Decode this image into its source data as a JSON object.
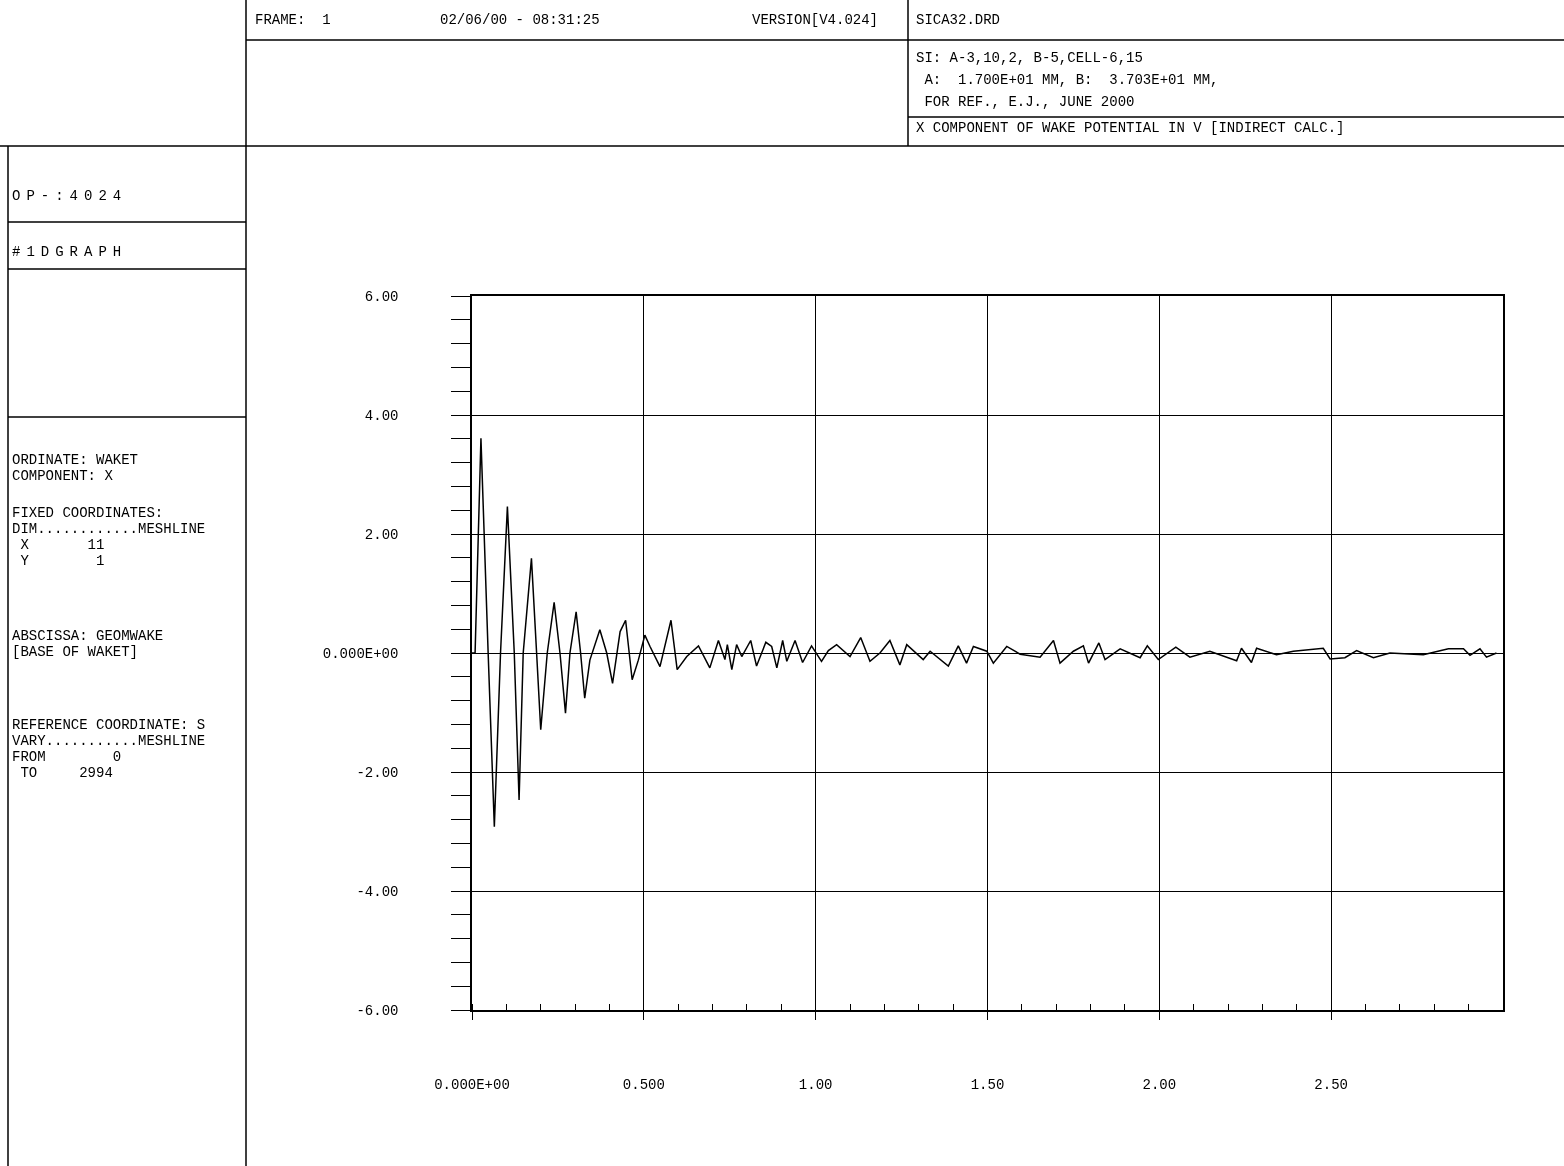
{
  "chart_data": {
    "type": "line",
    "title": "X COMPONENT OF WAKE POTENTIAL IN V [INDIRECT CALC.]",
    "annotations": [
      "FRAME:  1",
      "02/06/00 - 08:31:25",
      "VERSION[V4.024]",
      "SICA32.DRD",
      "SI: A-3,10,2, B-5,CELL-6,15",
      " A:  1.700E+01 MM, B:  3.703E+01 MM,",
      " FOR REF., E.J., JUNE 2000",
      "OP-:4024",
      "#1DGRAPH",
      "ORDINATE: WAKET\nCOMPONENT: X",
      "FIXED COORDINATES:\nDIM............MESHLINE\n X       11\n Y        1",
      "ABSCISSA: GEOMWAKE\n[BASE OF WAKET]",
      "REFERENCE COORDINATE: S\nVARY...........MESHLINE\nFROM        0\n TO     2994"
    ],
    "series": [
      {
        "color": "#000000",
        "x": [
          0.0,
          0.009,
          0.026,
          0.047,
          0.065,
          0.083,
          0.103,
          0.123,
          0.137,
          0.149,
          0.173,
          0.188,
          0.2,
          0.219,
          0.239,
          0.256,
          0.272,
          0.285,
          0.303,
          0.316,
          0.328,
          0.343,
          0.372,
          0.392,
          0.409,
          0.431,
          0.447,
          0.466,
          0.484,
          0.503,
          0.518,
          0.547,
          0.579,
          0.597,
          0.625,
          0.659,
          0.692,
          0.717,
          0.736,
          0.743,
          0.756,
          0.77,
          0.785,
          0.811,
          0.828,
          0.855,
          0.872,
          0.887,
          0.904,
          0.916,
          0.94,
          0.962,
          0.988,
          1.017,
          1.037,
          1.061,
          1.1,
          1.131,
          1.158,
          1.187,
          1.216,
          1.245,
          1.265,
          1.313,
          1.333,
          1.386,
          1.415,
          1.439,
          1.459,
          1.498,
          1.517,
          1.556,
          1.595,
          1.653,
          1.692,
          1.711,
          1.75,
          1.779,
          1.794,
          1.824,
          1.842,
          1.886,
          1.944,
          1.965,
          1.997,
          2.048,
          2.089,
          2.147,
          2.225,
          2.239,
          2.268,
          2.283,
          2.341,
          2.39,
          2.477,
          2.497,
          2.54,
          2.574,
          2.623,
          2.671,
          2.768,
          2.841,
          2.885,
          2.904,
          2.933,
          2.952,
          2.981
        ],
        "values": [
          0.0,
          0.0,
          3.61,
          0.0,
          -2.92,
          0.0,
          2.46,
          0.0,
          -2.47,
          0.0,
          1.59,
          0.0,
          -1.29,
          0.0,
          0.85,
          0.0,
          -1.01,
          0.0,
          0.69,
          0.0,
          -0.76,
          -0.12,
          0.39,
          0.0,
          -0.51,
          0.36,
          0.55,
          -0.45,
          -0.12,
          0.3,
          0.11,
          -0.23,
          0.55,
          -0.28,
          -0.06,
          0.12,
          -0.25,
          0.21,
          -0.11,
          0.14,
          -0.28,
          0.14,
          -0.06,
          0.21,
          -0.22,
          0.18,
          0.11,
          -0.25,
          0.21,
          -0.14,
          0.21,
          -0.16,
          0.12,
          -0.14,
          0.04,
          0.14,
          -0.06,
          0.26,
          -0.14,
          0.0,
          0.21,
          -0.2,
          0.14,
          -0.11,
          0.03,
          -0.22,
          0.12,
          -0.17,
          0.11,
          0.03,
          -0.17,
          0.11,
          -0.02,
          -0.07,
          0.21,
          -0.17,
          0.03,
          0.12,
          -0.17,
          0.17,
          -0.11,
          0.07,
          -0.08,
          0.12,
          -0.11,
          0.1,
          -0.07,
          0.03,
          -0.13,
          0.08,
          -0.16,
          0.08,
          -0.03,
          0.03,
          0.08,
          -0.1,
          -0.08,
          0.04,
          -0.08,
          0.0,
          -0.03,
          0.07,
          0.07,
          -0.04,
          0.07,
          -0.07,
          0.0
        ]
      }
    ],
    "xlim": [
      0,
      3.0
    ],
    "xticks": [
      {
        "value": 0,
        "label": "0.000E+00"
      },
      {
        "value": 0.5,
        "label": "0.500"
      },
      {
        "value": 1,
        "label": "1.00"
      },
      {
        "value": 1.5,
        "label": "1.50"
      },
      {
        "value": 2,
        "label": "2.00"
      },
      {
        "value": 2.5,
        "label": "2.50"
      }
    ],
    "ylim": [
      -6,
      6
    ],
    "yticks": [
      {
        "value": -6,
        "label": "-6.00"
      },
      {
        "value": -4,
        "label": "-4.00"
      },
      {
        "value": -2,
        "label": "-2.00"
      },
      {
        "value": 0,
        "label": "0.000E+00"
      },
      {
        "value": 2,
        "label": "2.00"
      },
      {
        "value": 4,
        "label": "4.00"
      },
      {
        "value": 6,
        "label": "6.00"
      }
    ],
    "grid": true,
    "marker": "none",
    "line_style": "solid"
  }
}
